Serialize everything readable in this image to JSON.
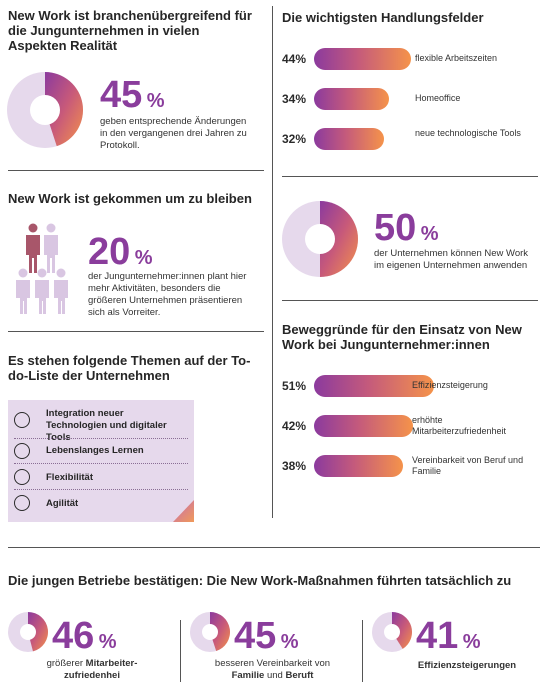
{
  "colors": {
    "accent": "#8a3d9c",
    "gradient_start": "#8b3a9e",
    "gradient_end": "#f5934a",
    "donut_bg": "#e6d9ec"
  },
  "sec1": {
    "heading": "New Work ist branchenübergreifend für die Jungunternehmen in vielen Aspekten Realität",
    "value": "45",
    "pct": "%",
    "desc": "geben entsprechende Änderungen in den vergangenen drei Jahren zu Protokoll."
  },
  "sec2": {
    "heading": "New Work ist gekommen um zu bleiben",
    "value": "20",
    "pct": "%",
    "desc": "der Jungunternehmer:innen plant hier mehr Aktivitäten, besonders die größeren Unternehmen präsentieren sich als Vorreiter."
  },
  "sec3": {
    "heading": "Es stehen folgende Themen auf der To-do-Liste der Unternehmen",
    "items": [
      "Integration neuer Technologien und digitaler Tools",
      "Lebenslanges Lernen",
      "Flexibilität",
      "Agilität"
    ]
  },
  "sec4": {
    "heading": "Die wichtigsten Handlungsfelder",
    "bars": [
      {
        "pct": "44%",
        "label": "flexible Arbeitszeiten"
      },
      {
        "pct": "34%",
        "label": "Homeoffice"
      },
      {
        "pct": "32%",
        "label": "neue technologische Tools"
      }
    ]
  },
  "sec5": {
    "value": "50",
    "pct": "%",
    "desc": "der Unternehmen können New Work im eigenen Unternehmen anwenden"
  },
  "sec6": {
    "heading": "Beweggründe für den Einsatz von New Work bei Jungunternehmer:innen",
    "bars": [
      {
        "pct": "51%",
        "label": "Effizienzsteigerung"
      },
      {
        "pct": "42%",
        "label": "erhöhte Mitarbeiterzufriedenheit"
      },
      {
        "pct": "38%",
        "label": "Vereinbarkeit von Beruf und Familie"
      }
    ]
  },
  "sec7": {
    "heading": "Die jungen Betriebe bestätigen: Die New Work-Maßnahmen führten tatsächlich zu",
    "items": [
      {
        "value": "46",
        "pct": "%",
        "desc_pre": "größerer ",
        "desc_bold": "Mitarbeiter-zufriedenhei",
        "desc_post": ""
      },
      {
        "value": "45",
        "pct": "%",
        "desc_pre": "besseren Vereinbarkeit von ",
        "desc_bold": "Familie",
        "desc_mid": " und ",
        "desc_bold2": "Beruft"
      },
      {
        "value": "41",
        "pct": "%",
        "desc_bold": "Effizienzsteigerungen"
      }
    ]
  },
  "chart_data": [
    {
      "type": "pie",
      "title": "New Work ist branchenübergreifend für die Jungunternehmen in vielen Aspekten Realität",
      "values": [
        45,
        55
      ]
    },
    {
      "type": "bar",
      "title": "Die wichtigsten Handlungsfelder",
      "categories": [
        "flexible Arbeitszeiten",
        "Homeoffice",
        "neue technologische Tools"
      ],
      "values": [
        44,
        34,
        32
      ]
    },
    {
      "type": "pie",
      "values": [
        50,
        50
      ]
    },
    {
      "type": "bar",
      "title": "Beweggründe für den Einsatz von New Work bei Jungunternehmer:innen",
      "categories": [
        "Effizienzsteigerung",
        "erhöhte Mitarbeiterzufriedenheit",
        "Vereinbarkeit von Beruf und Familie"
      ],
      "values": [
        51,
        42,
        38
      ]
    },
    {
      "type": "pie",
      "values": [
        46,
        54
      ]
    },
    {
      "type": "pie",
      "values": [
        45,
        55
      ]
    },
    {
      "type": "pie",
      "values": [
        41,
        59
      ]
    }
  ]
}
